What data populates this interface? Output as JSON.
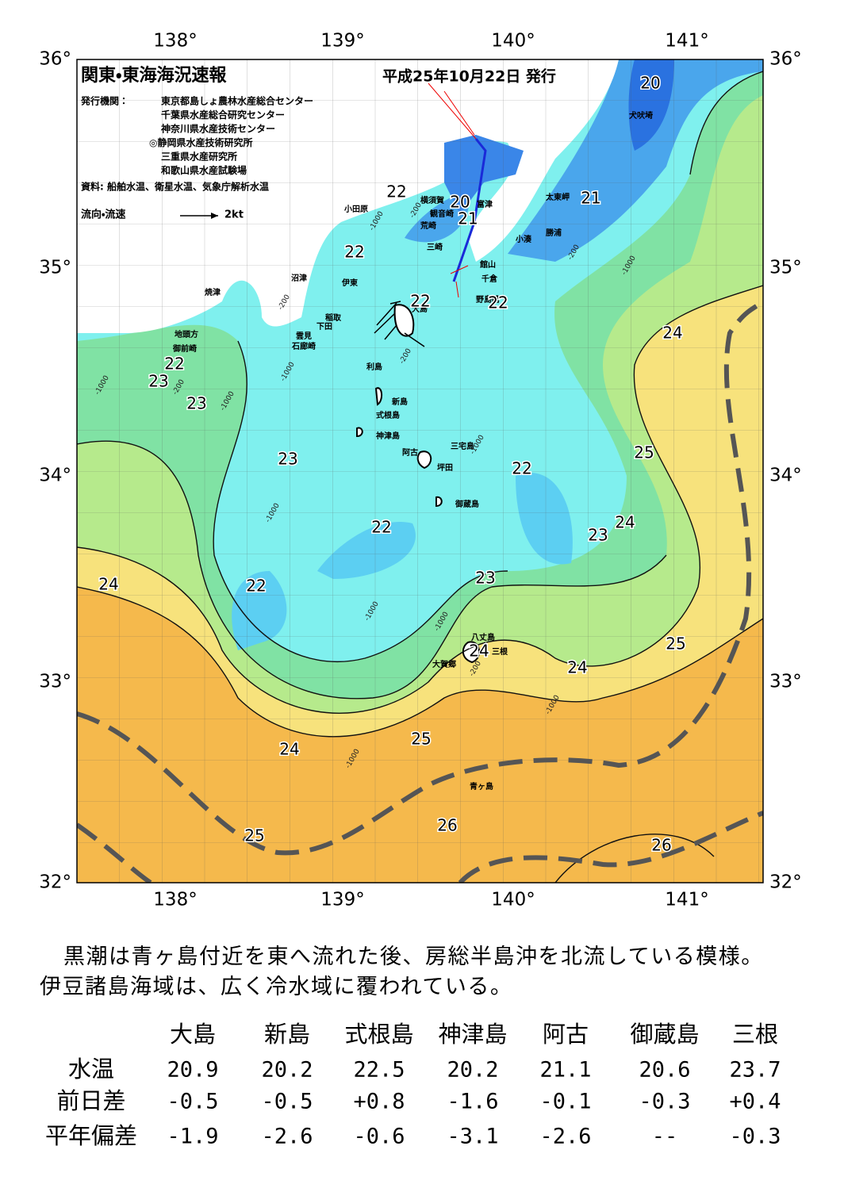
{
  "header": {
    "title": "関東・東海海況速報",
    "date": "平成25年10月22日 発行",
    "issuer_label": "発行機関：",
    "issuers": [
      "東京都島しょ農林水産総合センター",
      "千葉県水産総合研究センター",
      "神奈川県水産技術センター",
      "◎静岡県水産技術研究所",
      "三重県水産研究所",
      "和歌山県水産試験場"
    ],
    "source": "資料: 船舶水温、衛星水温、気象庁解析水温",
    "flow_legend": "流向・流速",
    "flow_scale": "2kt"
  },
  "axes": {
    "lon_labels": [
      "138°",
      "139°",
      "140°",
      "141°"
    ],
    "lat_labels": [
      "36°",
      "35°",
      "34°",
      "33°",
      "32°"
    ]
  },
  "places": [
    "犬吠埼",
    "太東岬",
    "勝浦",
    "小湊",
    "富津",
    "観音崎",
    "横須賀",
    "荒崎",
    "三崎",
    "館山",
    "千倉",
    "野島崎",
    "小田原",
    "沼津",
    "伊東",
    "焼津",
    "稲取",
    "下田",
    "雲見",
    "石廊崎",
    "地頭方",
    "御前崎",
    "大島",
    "利島",
    "新島",
    "式根島",
    "神津島",
    "三宅島",
    "阿古",
    "坪田",
    "御蔵島",
    "八丈島",
    "三根",
    "大賀郷",
    "青ヶ島"
  ],
  "isotherm_labels": [
    20,
    21,
    22,
    20,
    21,
    22,
    22,
    22,
    24,
    22,
    23,
    23,
    25,
    23,
    22,
    24,
    22,
    23,
    24,
    22,
    23,
    25,
    24,
    24,
    24,
    25,
    26,
    25,
    26
  ],
  "depth_labels": [
    -200,
    -1000,
    -200,
    -200,
    -1000,
    -1000,
    -200,
    -1000,
    -200,
    -1000,
    -1000,
    -1000,
    -1000,
    -1000,
    -200,
    -1000,
    -1000
  ],
  "summary": "黒潮は青ヶ島付近を東へ流れた後、房総半島沖を北流している模様。伊豆諸島海域は、広く冷水域に覆われている。",
  "table": {
    "columns": [
      "大島",
      "新島",
      "式根島",
      "神津島",
      "阿古",
      "御蔵島",
      "三根"
    ],
    "rows": [
      {
        "label": "水温",
        "cells": [
          "20.9",
          "20.2",
          "22.5",
          "20.2",
          "21.1",
          "20.6",
          "23.7"
        ]
      },
      {
        "label": "前日差",
        "cells": [
          "-0.5",
          "-0.5",
          "+0.8",
          "-1.6",
          "-0.1",
          "-0.3",
          "+0.4"
        ]
      },
      {
        "label": "平年偏差",
        "cells": [
          "-1.9",
          "-2.6",
          "-0.6",
          "-3.1",
          "-2.6",
          "--",
          "-0.3"
        ]
      }
    ]
  }
}
